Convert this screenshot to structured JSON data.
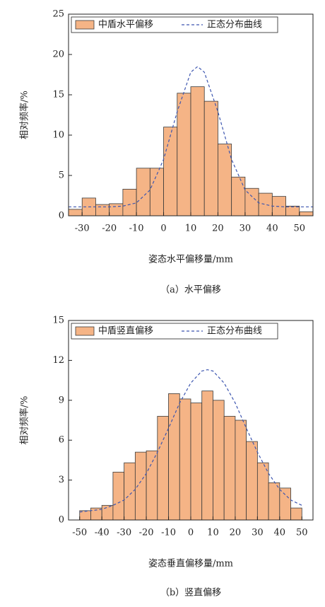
{
  "chart_data": [
    {
      "type": "histogram",
      "x_label": "姿态水平偏移量/mm",
      "y_label": "相对频率/%",
      "caption": "（a）水平偏移",
      "bins": [
        -35,
        -30,
        -25,
        -20,
        -15,
        -10,
        -5,
        0,
        5,
        10,
        15,
        20,
        25,
        30,
        35,
        40,
        45,
        50,
        55
      ],
      "series": [
        {
          "name": "中盾水平偏移",
          "color": "#f5b486",
          "values": [
            0.8,
            2.2,
            1.4,
            1.5,
            3.3,
            5.9,
            5.9,
            11,
            15.2,
            16,
            14.2,
            8.9,
            4.8,
            3.4,
            2.8,
            2.4,
            1.2,
            0.5
          ]
        }
      ],
      "curve": {
        "name": "正态分布曲线",
        "color": "#3d56b0",
        "x": [
          -35,
          -30,
          -25,
          -20,
          -15,
          -10,
          -5,
          0,
          5,
          10,
          12.5,
          15,
          20,
          25,
          30,
          35,
          40,
          45,
          50,
          55
        ],
        "values": [
          1.1,
          1.1,
          1.1,
          1.1,
          1.2,
          1.6,
          3.2,
          7.0,
          12.9,
          17.8,
          18.5,
          17.8,
          12.9,
          7.0,
          3.2,
          1.6,
          1.2,
          1.1,
          1.1,
          1.1
        ]
      },
      "xlim": [
        -35,
        55
      ],
      "xticks": [
        -30,
        -20,
        -10,
        0,
        10,
        20,
        30,
        40,
        50
      ],
      "ylim": [
        0,
        25
      ],
      "yticks": [
        0,
        5,
        10,
        15,
        20,
        25
      ]
    },
    {
      "type": "histogram",
      "x_label": "姿态垂直偏移量/mm",
      "y_label": "相对频率/%",
      "caption": "（b）竖直偏移",
      "bins": [
        -50,
        -45,
        -40,
        -35,
        -30,
        -25,
        -20,
        -15,
        -10,
        -5,
        0,
        5,
        10,
        15,
        20,
        25,
        30,
        35,
        40,
        45,
        50
      ],
      "series": [
        {
          "name": "中盾竖直偏移",
          "color": "#f5b486",
          "values": [
            0.7,
            0.9,
            1.1,
            3.6,
            4.3,
            5.1,
            5.2,
            7.8,
            9.5,
            9.1,
            8.8,
            9.7,
            9.0,
            7.8,
            7.5,
            5.9,
            4.3,
            2.8,
            2.4,
            0.9
          ]
        }
      ],
      "curve": {
        "name": "正态分布曲线",
        "color": "#3d56b0",
        "x": [
          -50,
          -45,
          -40,
          -35,
          -30,
          -25,
          -20,
          -15,
          -10,
          -5,
          0,
          5,
          7.5,
          10,
          15,
          20,
          25,
          30,
          35,
          40,
          45,
          50
        ],
        "values": [
          0.6,
          0.7,
          0.8,
          1.1,
          1.5,
          2.3,
          3.5,
          5.1,
          6.9,
          8.8,
          10.3,
          11.2,
          11.3,
          11.2,
          10.3,
          8.8,
          6.9,
          5.1,
          3.5,
          2.3,
          1.5,
          1.1
        ]
      },
      "xlim": [
        -55,
        55
      ],
      "xticks": [
        -50,
        -40,
        -30,
        -20,
        -10,
        0,
        10,
        20,
        30,
        40,
        50
      ],
      "ylim": [
        0,
        15
      ],
      "yticks": [
        0,
        3,
        6,
        9,
        12,
        15
      ]
    }
  ]
}
